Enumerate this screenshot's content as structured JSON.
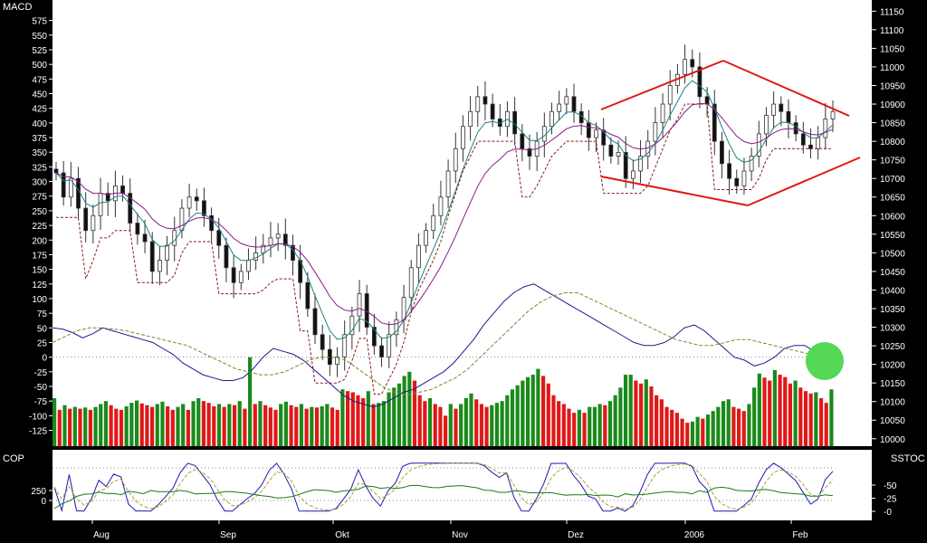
{
  "panels": {
    "main": {
      "left_label": "MACD",
      "right_axis": "price",
      "left_axis": "macd"
    },
    "lower": {
      "left_label": "COP",
      "right_label": "SSTOC"
    }
  },
  "colors": {
    "background": "#000000",
    "plot_background": "#ffffff",
    "macd_line": "#1a1a8c",
    "signal_line": "#7a8a2a",
    "ema_fast": "#1a8080",
    "ema_slow": "#8a1a8a",
    "stop_line": "#8b1a1a",
    "diamond": "#e01818",
    "histogram_up": "#1a8a1a",
    "histogram_down": "#e01818",
    "marker": "#55d855",
    "cop_line": "#1a7a1a",
    "stoch_k": "#1a1ab0",
    "stoch_d": "#b0a030"
  },
  "chart_data": [
    {
      "type": "candlestick",
      "series_name": "price",
      "y_axis": {
        "ticks": [
          11150,
          11100,
          11050,
          11000,
          10950,
          10900,
          10850,
          10800,
          10750,
          10700,
          10650,
          10600,
          10550,
          10500,
          10450,
          10400,
          10350,
          10300,
          10250,
          10200,
          10150,
          10100,
          10050,
          10000
        ],
        "range": [
          9980,
          11180
        ]
      },
      "x_axis": {
        "ticks": [
          "Aug",
          "Sep",
          "Okt",
          "Nov",
          "Dez",
          "2006",
          "Feb"
        ]
      },
      "close_path": [
        10715,
        10650,
        10700,
        10620,
        10560,
        10600,
        10660,
        10640,
        10680,
        10660,
        10580,
        10550,
        10530,
        10450,
        10480,
        10520,
        10560,
        10620,
        10650,
        10640,
        10600,
        10560,
        10520,
        10460,
        10420,
        10450,
        10480,
        10500,
        10520,
        10540,
        10550,
        10520,
        10480,
        10420,
        10350,
        10280,
        10240,
        10200,
        10220,
        10280,
        10330,
        10390,
        10300,
        10250,
        10220,
        10280,
        10320,
        10380,
        10460,
        10520,
        10560,
        10600,
        10650,
        10720,
        10780,
        10840,
        10880,
        10920,
        10900,
        10860,
        10840,
        10880,
        10820,
        10780,
        10760,
        10800,
        10840,
        10880,
        10900,
        10920,
        10880,
        10850,
        10810,
        10830,
        10790,
        10760,
        10770,
        10700,
        10720,
        10760,
        10800,
        10850,
        10900,
        10950,
        10980,
        11020,
        11000,
        10920,
        10900,
        10800,
        10740,
        10700,
        10680,
        10720,
        10760,
        10820,
        10870,
        10900,
        10880,
        10850,
        10820,
        10790,
        10780,
        10810,
        10860,
        10880
      ]
    },
    {
      "type": "line",
      "series_name": "macd",
      "y_axis": {
        "ticks": [
          575,
          550,
          525,
          500,
          475,
          450,
          425,
          400,
          375,
          350,
          325,
          300,
          275,
          250,
          225,
          200,
          175,
          150,
          125,
          100,
          75,
          50,
          25,
          0,
          -25,
          -50,
          -75,
          -100,
          -125
        ],
        "range": [
          -152,
          610
        ]
      },
      "macd": [
        50,
        48,
        42,
        33,
        40,
        50,
        45,
        40,
        35,
        30,
        25,
        15,
        5,
        -10,
        -20,
        -30,
        -35,
        -40,
        -40,
        -35,
        -20,
        0,
        15,
        10,
        5,
        -5,
        -20,
        -35,
        -50,
        -65,
        -75,
        -80,
        -85,
        -80,
        -70,
        -60,
        -55,
        -45,
        -35,
        -25,
        -10,
        10,
        30,
        55,
        75,
        95,
        110,
        120,
        125,
        115,
        105,
        95,
        85,
        75,
        65,
        55,
        45,
        35,
        25,
        20,
        20,
        25,
        35,
        50,
        55,
        45,
        30,
        15,
        0,
        -5,
        -15,
        -10,
        0,
        15,
        20,
        20,
        10,
        0,
        15
      ],
      "signal": [
        25,
        35,
        45,
        50,
        50,
        48,
        45,
        40,
        35,
        30,
        25,
        20,
        10,
        0,
        -10,
        -20,
        -25,
        -30,
        -30,
        -25,
        -15,
        -5,
        0,
        0,
        -5,
        -20,
        -35,
        -50,
        -60,
        -65,
        -60,
        -55,
        -45,
        -35,
        -20,
        0,
        20,
        40,
        60,
        80,
        95,
        105,
        110,
        110,
        100,
        90,
        80,
        70,
        60,
        50,
        40,
        30,
        25,
        20,
        20,
        25,
        30,
        30,
        25,
        20,
        15,
        10,
        5,
        5,
        10
      ]
    },
    {
      "type": "bar",
      "series_name": "histogram",
      "values": [
        -70,
        -90,
        -82,
        -88,
        -85,
        -88,
        -86,
        -90,
        -85,
        -80,
        -75,
        -82,
        -88,
        -90,
        -84,
        -78,
        -74,
        -79,
        -82,
        -85,
        -80,
        -76,
        -84,
        -90,
        -85,
        -80,
        -90,
        -75,
        -70,
        -75,
        -78,
        -84,
        -80,
        -85,
        -80,
        -82,
        -75,
        -88,
        0,
        -80,
        -75,
        -82,
        -86,
        -90,
        -80,
        -76,
        -82,
        -85,
        -80,
        -88,
        -85,
        -86,
        -84,
        -80,
        -86,
        -90,
        -55,
        -58,
        -60,
        -65,
        -70,
        -58,
        -80,
        -78,
        -75,
        -60,
        -52,
        -45,
        -32,
        -25,
        -40,
        -65,
        -75,
        -70,
        -80,
        -85,
        -100,
        -80,
        -88,
        -80,
        -70,
        -62,
        -72,
        -80,
        -85,
        -82,
        -78,
        -75,
        -65,
        -55,
        -48,
        -40,
        -34,
        -30,
        -20,
        -32,
        -45,
        -65,
        -75,
        -80,
        -88,
        -95,
        -90,
        -95,
        -85,
        -85,
        -80,
        -82,
        -75,
        -65,
        -52,
        -30,
        -30,
        -40,
        -45,
        -38,
        -50,
        -65,
        -72,
        -85,
        -90,
        -95,
        -105,
        -112,
        -110,
        -102,
        -105,
        -98,
        -92,
        -85,
        -75,
        -72,
        -85,
        -88,
        -92,
        -80,
        -52,
        -28,
        -35,
        -40,
        -22,
        -30,
        -34,
        -45,
        -40,
        -52,
        -58,
        -62,
        -60,
        -70,
        -78,
        -55
      ]
    },
    {
      "type": "line",
      "series_name": "stochastic",
      "y_axis": {
        "ticks": [
          50,
          25,
          0
        ]
      },
      "cop_axis": {
        "ticks": [
          250,
          0
        ]
      }
    }
  ]
}
